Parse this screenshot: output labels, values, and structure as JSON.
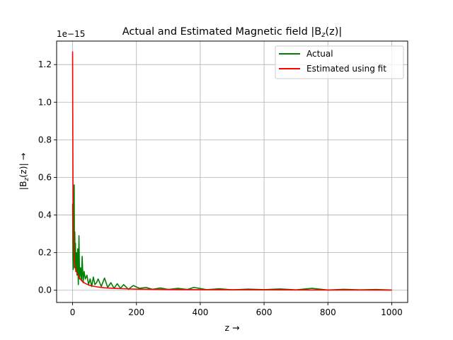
{
  "chart_data": {
    "type": "line",
    "title": "Actual and Estimated Magnetic field |B",
    "title_sub": "z",
    "title_tail": "(z)|",
    "xlabel": "z  →",
    "ylabel_pre": "|B",
    "ylabel_sub": "z",
    "ylabel_tail": "(z)| →",
    "y_offset_label": "1e−15",
    "y_scale_exponent": -15,
    "xlim": [
      -50,
      1050
    ],
    "ylim": [
      -0.065,
      1.325
    ],
    "x_ticks": [
      0,
      200,
      400,
      600,
      800,
      1000
    ],
    "x_tick_labels": [
      "0",
      "200",
      "400",
      "600",
      "800",
      "1000"
    ],
    "y_ticks": [
      0.0,
      0.2,
      0.4,
      0.6,
      0.8,
      1.0,
      1.2
    ],
    "y_tick_labels": [
      "0.0",
      "0.2",
      "0.4",
      "0.6",
      "0.8",
      "1.0",
      "1.2"
    ],
    "grid": true,
    "legend_position": "top-right",
    "series": [
      {
        "name": "Actual",
        "color": "#008000",
        "x": [
          0,
          1,
          2,
          3,
          4,
          5,
          6,
          7,
          8,
          9,
          10,
          12,
          14,
          16,
          18,
          20,
          22,
          25,
          28,
          30,
          33,
          36,
          40,
          45,
          50,
          55,
          60,
          65,
          70,
          75,
          80,
          90,
          100,
          110,
          120,
          130,
          140,
          150,
          160,
          175,
          190,
          210,
          230,
          250,
          275,
          300,
          330,
          360,
          380,
          420,
          460,
          500,
          550,
          600,
          650,
          700,
          750,
          800,
          850,
          900,
          950,
          1000
        ],
        "y": [
          0.46,
          0.19,
          0.11,
          0.35,
          0.2,
          0.56,
          0.12,
          0.31,
          0.14,
          0.25,
          0.1,
          0.2,
          0.08,
          0.22,
          0.03,
          0.29,
          0.06,
          0.12,
          0.05,
          0.18,
          0.04,
          0.1,
          0.06,
          0.08,
          0.03,
          0.06,
          0.02,
          0.07,
          0.03,
          0.04,
          0.06,
          0.02,
          0.065,
          0.015,
          0.04,
          0.01,
          0.035,
          0.01,
          0.03,
          0.005,
          0.025,
          0.01,
          0.015,
          0.005,
          0.012,
          0.004,
          0.01,
          0.004,
          0.015,
          0.003,
          0.008,
          0.002,
          0.006,
          0.003,
          0.007,
          0.002,
          0.01,
          0.001,
          0.005,
          0.002,
          0.004,
          0.001
        ]
      },
      {
        "name": "Estimated using fit",
        "color": "#ff0000",
        "x": [
          0,
          0.5,
          1,
          1.5,
          2,
          3,
          4,
          5,
          6,
          8,
          10,
          13,
          16,
          20,
          25,
          30,
          40,
          50,
          60,
          80,
          100,
          130,
          160,
          200,
          250,
          300,
          400,
          500,
          600,
          700,
          800,
          900,
          1000
        ],
        "y": [
          1.27,
          0.95,
          0.68,
          0.49,
          0.38,
          0.27,
          0.21,
          0.175,
          0.15,
          0.125,
          0.11,
          0.095,
          0.085,
          0.07,
          0.058,
          0.048,
          0.036,
          0.028,
          0.023,
          0.017,
          0.013,
          0.01,
          0.008,
          0.006,
          0.005,
          0.004,
          0.003,
          0.0025,
          0.002,
          0.0015,
          0.0012,
          0.001,
          0.0008
        ]
      }
    ]
  }
}
